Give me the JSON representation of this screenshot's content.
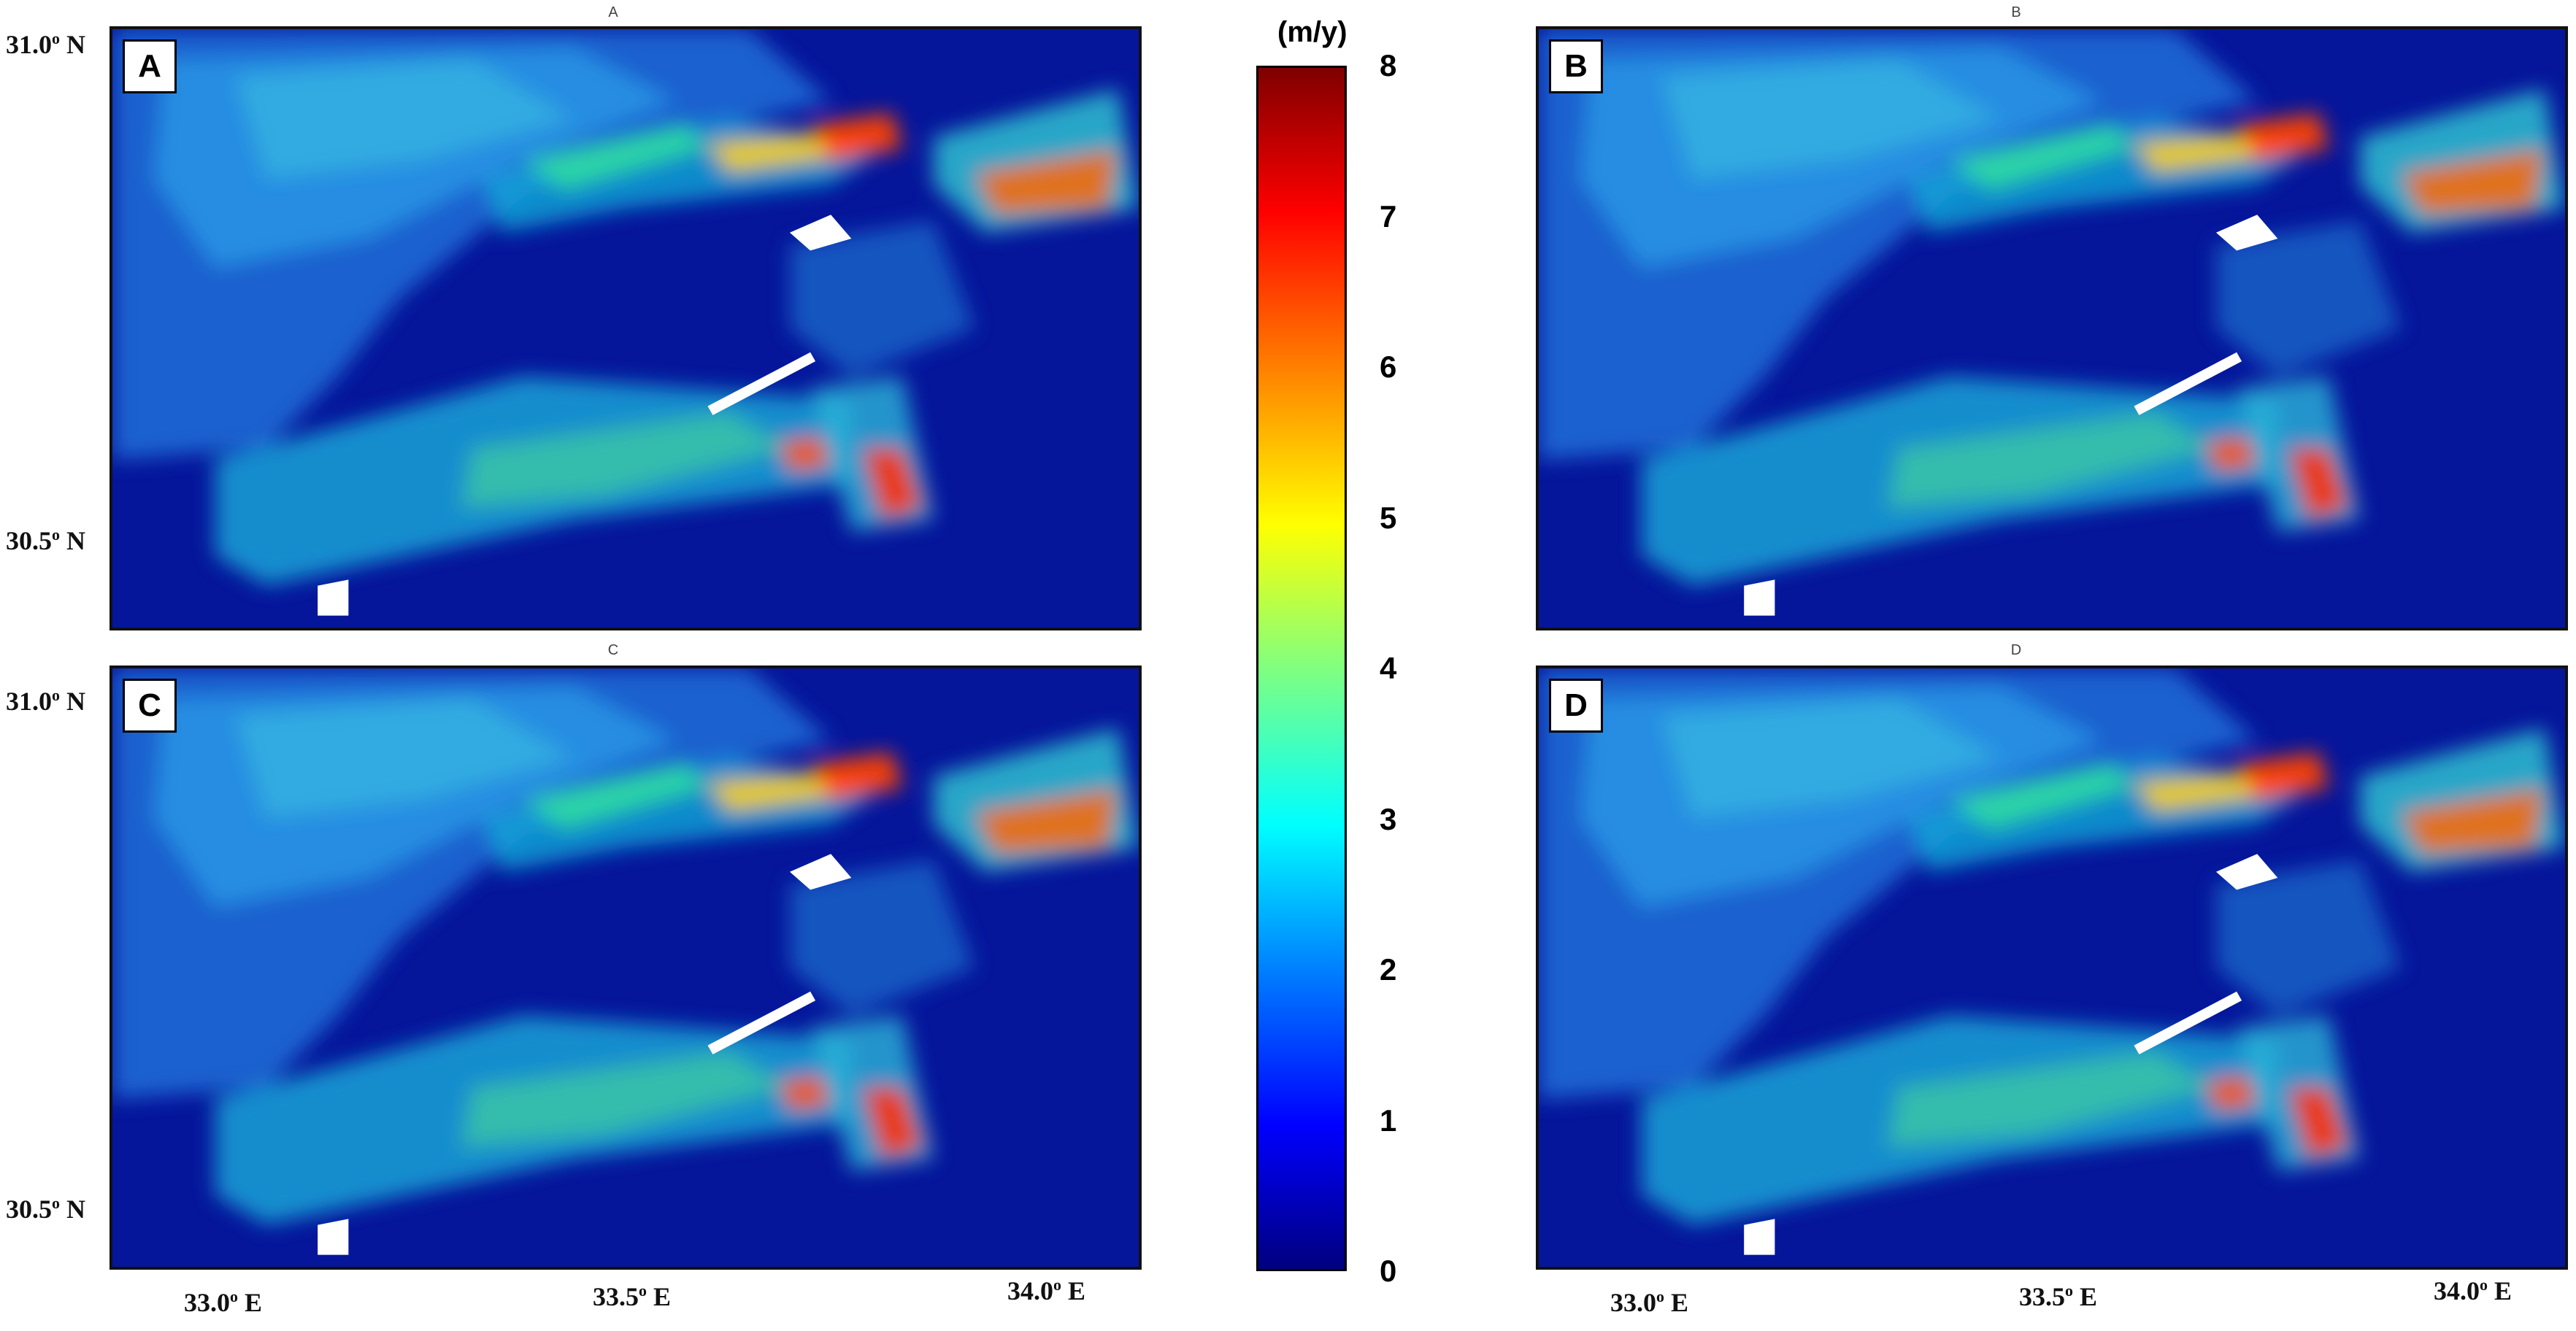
{
  "figure": {
    "unit_label": "(m/y)",
    "colorbar": {
      "ticks": [
        "8",
        "7",
        "6",
        "5",
        "4",
        "3",
        "2",
        "1",
        "0"
      ],
      "range": [
        0,
        8
      ],
      "colors": [
        "#00007f",
        "#0000ff",
        "#0080ff",
        "#00ffff",
        "#80ff80",
        "#ffff00",
        "#ff8000",
        "#ff0000",
        "#7f0000"
      ]
    },
    "panels": [
      {
        "badge": "A",
        "caption": "A"
      },
      {
        "badge": "B",
        "caption": "B"
      },
      {
        "badge": "C",
        "caption": "C"
      },
      {
        "badge": "D",
        "caption": "D"
      }
    ],
    "lat_labels": {
      "top": "31.0",
      "bottom": "30.5",
      "suffix": "N"
    },
    "lon_labels": [
      {
        "value": "33.0",
        "suffix": "E"
      },
      {
        "value": "33.5",
        "suffix": "E"
      },
      {
        "value": "34.0",
        "suffix": "E"
      }
    ]
  }
}
